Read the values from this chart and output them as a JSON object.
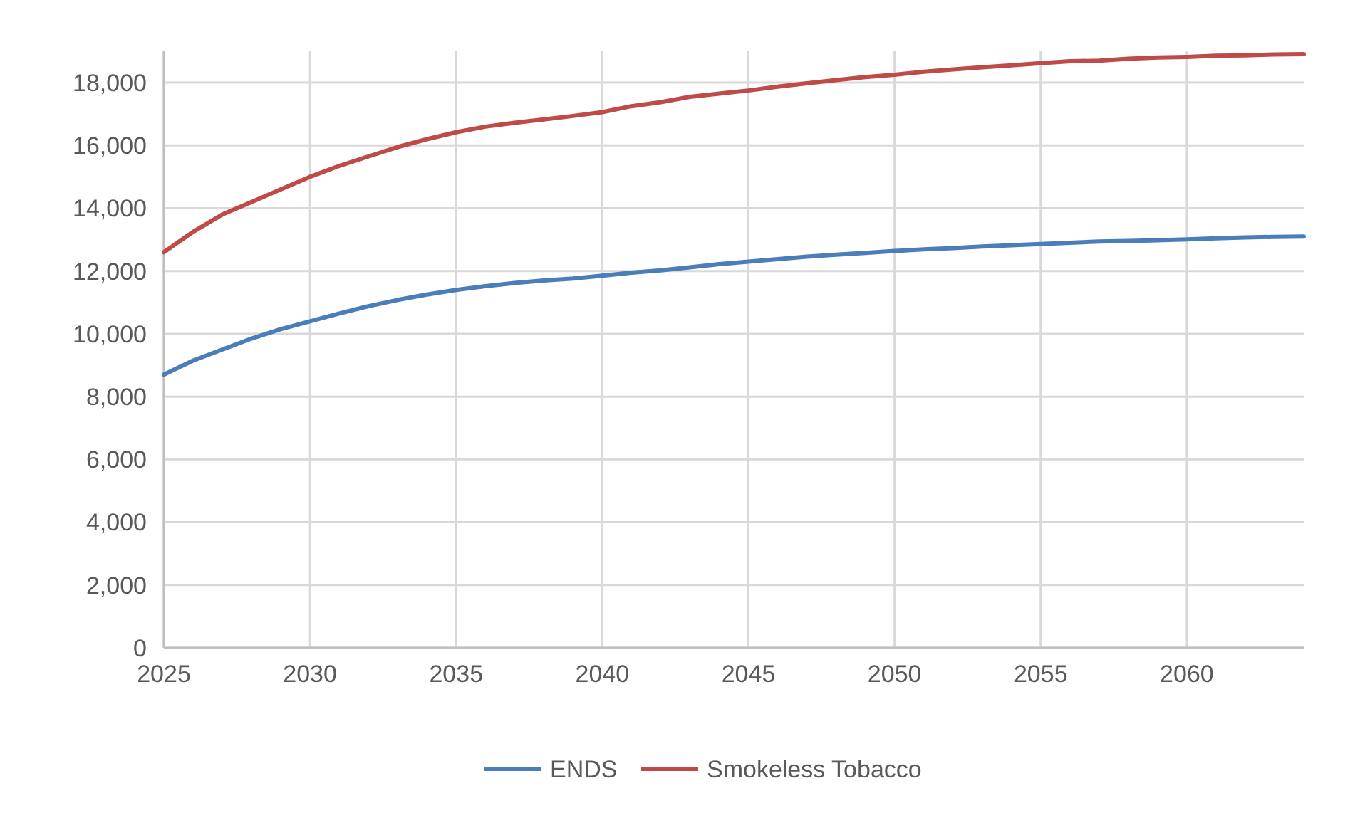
{
  "chart_data": {
    "type": "line",
    "x": [
      2025,
      2026,
      2027,
      2028,
      2029,
      2030,
      2031,
      2032,
      2033,
      2034,
      2035,
      2036,
      2037,
      2038,
      2039,
      2040,
      2041,
      2042,
      2043,
      2044,
      2045,
      2046,
      2047,
      2048,
      2049,
      2050,
      2051,
      2052,
      2053,
      2054,
      2055,
      2056,
      2057,
      2058,
      2059,
      2060,
      2061,
      2062,
      2063,
      2064
    ],
    "series": [
      {
        "name": "ENDS",
        "color": "#4a7ebb",
        "values": [
          8700,
          9150,
          9500,
          9850,
          10150,
          10400,
          10650,
          10880,
          11080,
          11250,
          11400,
          11520,
          11620,
          11700,
          11760,
          11850,
          11950,
          12020,
          12120,
          12220,
          12300,
          12380,
          12460,
          12520,
          12580,
          12640,
          12690,
          12730,
          12780,
          12820,
          12860,
          12900,
          12940,
          12960,
          12980,
          13010,
          13040,
          13070,
          13090,
          13100
        ]
      },
      {
        "name": "Smokeless Tobacco",
        "color": "#be4b48",
        "values": [
          12600,
          13250,
          13800,
          14200,
          14600,
          15000,
          15350,
          15650,
          15950,
          16200,
          16420,
          16600,
          16720,
          16830,
          16940,
          17060,
          17250,
          17380,
          17550,
          17650,
          17750,
          17870,
          17980,
          18080,
          18180,
          18250,
          18350,
          18420,
          18490,
          18550,
          18620,
          18680,
          18700,
          18760,
          18800,
          18820,
          18860,
          18870,
          18900,
          18910
        ]
      }
    ],
    "xlim": [
      2025,
      2064
    ],
    "xticks": [
      2025,
      2030,
      2035,
      2040,
      2045,
      2050,
      2055,
      2060
    ],
    "ylim": [
      0,
      19000
    ],
    "yticks": [
      {
        "value": 0,
        "label": "0"
      },
      {
        "value": 2000,
        "label": "2,000"
      },
      {
        "value": 4000,
        "label": "4,000"
      },
      {
        "value": 6000,
        "label": "6,000"
      },
      {
        "value": 8000,
        "label": "8,000"
      },
      {
        "value": 10000,
        "label": "10,000"
      },
      {
        "value": 12000,
        "label": "12,000"
      },
      {
        "value": 14000,
        "label": "14,000"
      },
      {
        "value": 16000,
        "label": "16,000"
      },
      {
        "value": 18000,
        "label": "18,000"
      }
    ],
    "grid": true,
    "legend": "bottom",
    "marker": "none",
    "line_style": "solid"
  }
}
